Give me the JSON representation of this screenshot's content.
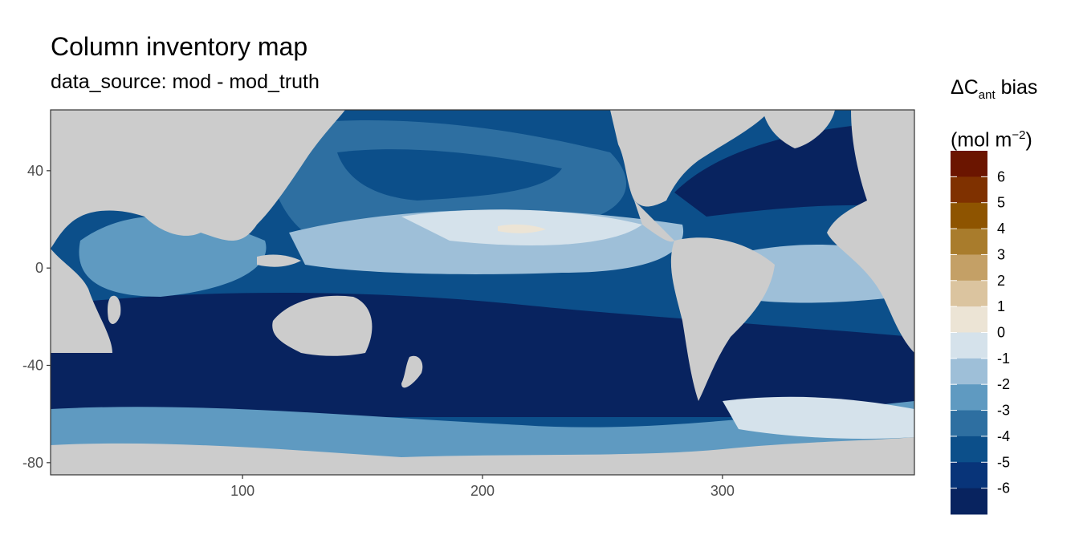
{
  "header": {
    "title": "Column inventory map",
    "subtitle": "data_source: mod - mod_truth"
  },
  "legend": {
    "title_symbol": "ΔC",
    "title_sub": "ant",
    "title_tail": " bias",
    "unit_open": "(mol m",
    "unit_sup": "−2",
    "unit_close": ")",
    "labels": [
      "6",
      "5",
      "4",
      "3",
      "2",
      "1",
      "0",
      "-1",
      "-2",
      "-3",
      "-4",
      "-5",
      "-6"
    ],
    "colors": [
      "#6b1500",
      "#7f3100",
      "#8e5400",
      "#a97c2c",
      "#c4a066",
      "#dbc49f",
      "#ece4d5",
      "#d5e2eb",
      "#9ebfd8",
      "#5f9ac1",
      "#2e6fa1",
      "#0c4f8a",
      "#083479",
      "#08235f"
    ]
  },
  "axes": {
    "x_ticks": [
      "100",
      "200",
      "300"
    ],
    "y_ticks": [
      "40",
      "0",
      "-40",
      "-80"
    ],
    "x_values": [
      100,
      200,
      300
    ],
    "y_values": [
      40,
      0,
      -40,
      -80
    ],
    "xlim": [
      20,
      380
    ],
    "ylim": [
      -85,
      65
    ]
  },
  "map": {
    "land_color": "#cccccc",
    "ocean_colors": {
      "deep": "#08235f",
      "dark": "#0c4f8a",
      "mid": "#2e6fa1",
      "medium": "#5f9ac1",
      "light": "#9ebfd8",
      "pale": "#d5e2eb",
      "neutral": "#ece4d5"
    }
  }
}
